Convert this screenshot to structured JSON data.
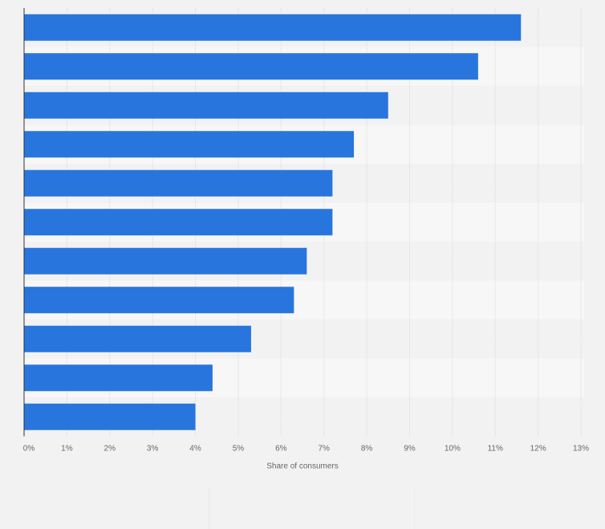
{
  "chart_data": {
    "type": "bar",
    "orientation": "horizontal",
    "categories": [
      "",
      "",
      "",
      "",
      "",
      "",
      "",
      "",
      "",
      "",
      ""
    ],
    "values": [
      11.6,
      10.6,
      8.5,
      7.7,
      7.2,
      7.2,
      6.6,
      6.3,
      5.3,
      4.4,
      4.0
    ],
    "xlabel": "Share of consumers",
    "ylabel": "",
    "xlim": [
      0,
      13
    ],
    "xticks": [
      0,
      1,
      2,
      3,
      4,
      5,
      6,
      7,
      8,
      9,
      10,
      11,
      12,
      13
    ],
    "tick_labels": [
      "0%",
      "1%",
      "2%",
      "3%",
      "4%",
      "5%",
      "6%",
      "7%",
      "8%",
      "9%",
      "10%",
      "11%",
      "12%",
      "13%"
    ],
    "grid": true,
    "colors": {
      "bar": "#2876dd",
      "band_light": "#f7f7f7",
      "band_dark": "#f2f2f2",
      "grid": "#d9d9d9",
      "axis": "#333333",
      "text": "#666666"
    }
  }
}
